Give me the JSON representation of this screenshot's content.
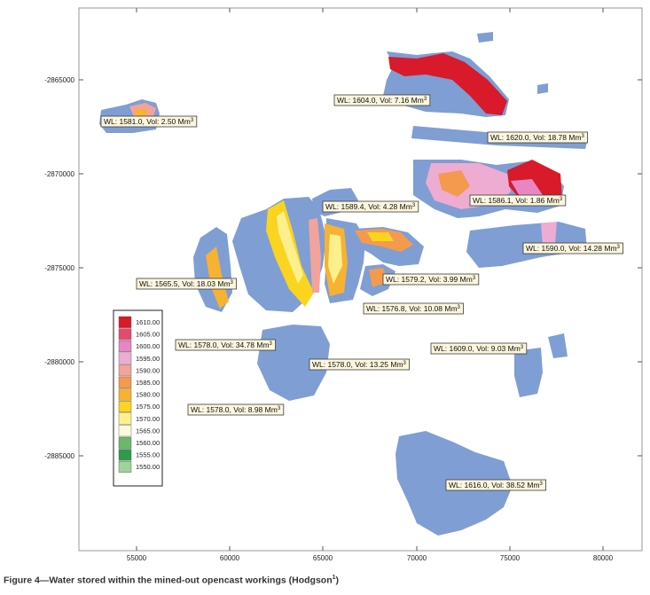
{
  "map": {
    "x_ticks": [
      "55000",
      "60000",
      "65000",
      "70000",
      "75000",
      "80000"
    ],
    "y_ticks": [
      "-2865000",
      "-2870000",
      "-2875000",
      "-2880000",
      "-2885000"
    ],
    "base_color": "#7f9ed4",
    "labels": [
      {
        "wl": "1604.0",
        "vol": "7.16"
      },
      {
        "wl": "1581.0",
        "vol": "2.50"
      },
      {
        "wl": "1620.0",
        "vol": "18.78"
      },
      {
        "wl": "1589.4",
        "vol": "4.28"
      },
      {
        "wl": "1586.1",
        "vol": "1.86"
      },
      {
        "wl": "1590.0",
        "vol": "14.28"
      },
      {
        "wl": "1565.5",
        "vol": "18.03"
      },
      {
        "wl": "1579.2",
        "vol": "3.99"
      },
      {
        "wl": "1576.8",
        "vol": "10.08"
      },
      {
        "wl": "1578.0",
        "vol": "34.78"
      },
      {
        "wl": "1609.0",
        "vol": "9.03"
      },
      {
        "wl": "1578.0",
        "vol": "13.25"
      },
      {
        "wl": "1578.0",
        "vol": "8.98"
      },
      {
        "wl": "1616.0",
        "vol": "38.52"
      }
    ],
    "legend": [
      {
        "value": "1610.00",
        "color": "#d81a2a"
      },
      {
        "value": "1605.00",
        "color": "#e44a6e"
      },
      {
        "value": "1600.00",
        "color": "#e886c4"
      },
      {
        "value": "1595.00",
        "color": "#eeacd2"
      },
      {
        "value": "1590.00",
        "color": "#f2a39a"
      },
      {
        "value": "1585.00",
        "color": "#f49a4e"
      },
      {
        "value": "1580.00",
        "color": "#f7b232"
      },
      {
        "value": "1575.00",
        "color": "#fbd420"
      },
      {
        "value": "1570.00",
        "color": "#fdf08c"
      },
      {
        "value": "1565.00",
        "color": "#fbf9da"
      },
      {
        "value": "1560.00",
        "color": "#6bb86c"
      },
      {
        "value": "1555.00",
        "color": "#2e9a4a"
      },
      {
        "value": "1550.00",
        "color": "#9ed49a"
      }
    ]
  },
  "caption": {
    "text": "Figure 4—Water stored within the mined-out opencast workings (Hodgson",
    "ref": "1",
    "close": ")"
  }
}
